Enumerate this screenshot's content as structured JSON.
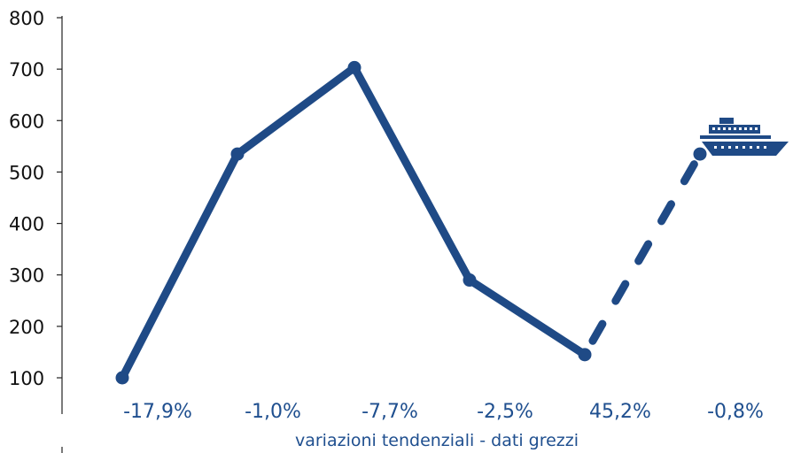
{
  "chart_data": {
    "type": "line",
    "categories": [
      "-17,9%",
      "-1,0%",
      "-7,7%",
      "-2,5%",
      "45,2%",
      "-0,8%"
    ],
    "series": [
      {
        "values": [
          100,
          535,
          703,
          290,
          145,
          535
        ]
      }
    ],
    "dashed_segment_from_index": 4,
    "xlabel": "variazioni tendenziali - dati grezzi",
    "ylabel": "",
    "ylim": [
      100,
      800
    ],
    "yticks": [
      "100",
      "200",
      "300",
      "400",
      "500",
      "600",
      "700",
      "800"
    ],
    "grid": false,
    "legend": "none",
    "icon": "cruise-ship-icon",
    "colors": {
      "line": "#1f4a86",
      "text": "#1f4f8f",
      "axis": "#222222"
    }
  }
}
